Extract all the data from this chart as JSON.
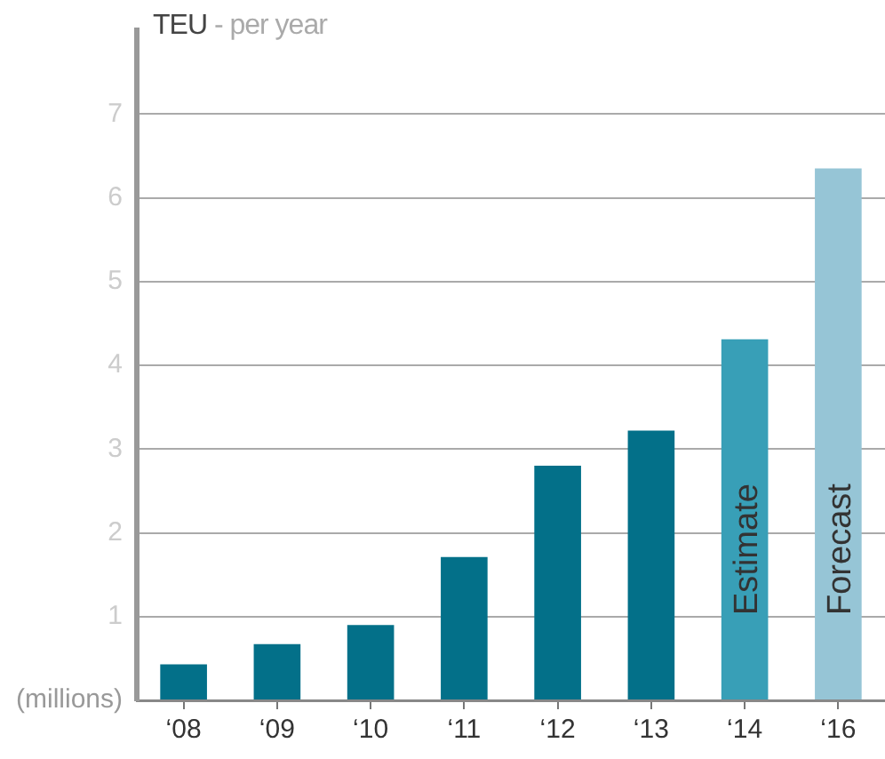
{
  "chart_data": {
    "type": "bar",
    "title": "TEU",
    "subtitle": "- per year",
    "categories": [
      "‘08",
      "‘09",
      "‘10",
      "‘11",
      "‘12",
      "‘13",
      "‘14",
      "‘16"
    ],
    "values": [
      0.43,
      0.67,
      0.9,
      1.71,
      2.8,
      3.22,
      4.31,
      6.35
    ],
    "colors": [
      "#037089",
      "#037089",
      "#037089",
      "#037089",
      "#037089",
      "#037089",
      "#389fb7",
      "#96c5d6"
    ],
    "ylim": [
      0,
      8
    ],
    "yticks": [
      {
        "value": 0,
        "label": "(millions)"
      },
      1,
      2,
      3,
      4,
      5,
      6,
      7
    ],
    "grid": "y",
    "legend": false,
    "annotations": [
      "Estimate",
      "Forecast"
    ]
  }
}
